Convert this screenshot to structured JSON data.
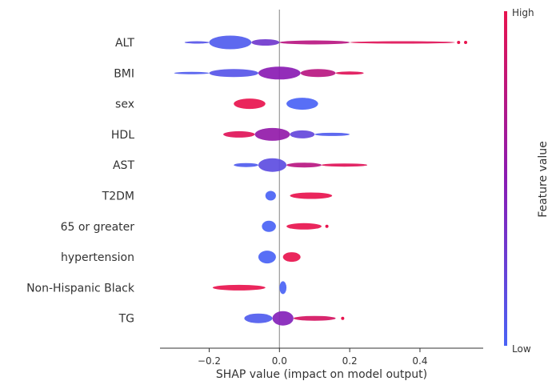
{
  "chart_data": {
    "type": "beeswarm",
    "xlabel": "SHAP value (impact on model output)",
    "x_ticks": [
      -0.2,
      0.0,
      0.2,
      0.4
    ],
    "x_tick_labels": [
      "−0.2",
      "0.0",
      "0.2",
      "0.4"
    ],
    "xlim": [
      -0.34,
      0.58
    ],
    "colorbar": {
      "label": "Feature value",
      "high_label": "High",
      "low_label": "Low",
      "low_color": "#4a63f5",
      "mid_color": "#8a1bb3",
      "high_color": "#e8134e"
    },
    "features": [
      {
        "name": "ALT",
        "segments": [
          {
            "x0": -0.27,
            "x1": -0.2,
            "h": 3,
            "c": 0.1
          },
          {
            "x0": -0.2,
            "x1": -0.08,
            "h": 17,
            "c": 0.05
          },
          {
            "x0": -0.08,
            "x1": 0.0,
            "h": 8,
            "c": 0.3
          },
          {
            "x0": 0.0,
            "x1": 0.2,
            "h": 5,
            "c": 0.75
          },
          {
            "x0": 0.2,
            "x1": 0.5,
            "h": 3,
            "c": 0.95
          }
        ],
        "dots": [
          {
            "x": 0.51,
            "c": 1.0
          },
          {
            "x": 0.53,
            "c": 1.0
          }
        ]
      },
      {
        "name": "BMI",
        "segments": [
          {
            "x0": -0.3,
            "x1": -0.2,
            "h": 3,
            "c": 0.05
          },
          {
            "x0": -0.2,
            "x1": -0.06,
            "h": 10,
            "c": 0.1
          },
          {
            "x0": -0.06,
            "x1": 0.06,
            "h": 16,
            "c": 0.5
          },
          {
            "x0": 0.06,
            "x1": 0.16,
            "h": 10,
            "c": 0.75
          },
          {
            "x0": 0.16,
            "x1": 0.24,
            "h": 4,
            "c": 0.95
          }
        ],
        "dots": []
      },
      {
        "name": "sex",
        "segments": [
          {
            "x0": -0.13,
            "x1": -0.04,
            "h": 13,
            "c": 1.0
          },
          {
            "x0": 0.02,
            "x1": 0.11,
            "h": 15,
            "c": 0.0
          }
        ],
        "dots": []
      },
      {
        "name": "HDL",
        "segments": [
          {
            "x0": -0.16,
            "x1": -0.07,
            "h": 8,
            "c": 0.95
          },
          {
            "x0": -0.07,
            "x1": 0.03,
            "h": 16,
            "c": 0.55
          },
          {
            "x0": 0.03,
            "x1": 0.1,
            "h": 10,
            "c": 0.2
          },
          {
            "x0": 0.1,
            "x1": 0.2,
            "h": 4,
            "c": 0.05
          }
        ],
        "dots": []
      },
      {
        "name": "AST",
        "segments": [
          {
            "x0": -0.13,
            "x1": -0.06,
            "h": 5,
            "c": 0.05
          },
          {
            "x0": -0.06,
            "x1": 0.02,
            "h": 17,
            "c": 0.15
          },
          {
            "x0": 0.02,
            "x1": 0.12,
            "h": 6,
            "c": 0.75
          },
          {
            "x0": 0.12,
            "x1": 0.25,
            "h": 4,
            "c": 0.95
          }
        ],
        "dots": []
      },
      {
        "name": "T2DM",
        "segments": [
          {
            "x0": -0.04,
            "x1": -0.01,
            "h": 12,
            "c": 0.0
          },
          {
            "x0": 0.03,
            "x1": 0.15,
            "h": 8,
            "c": 1.0
          }
        ],
        "dots": []
      },
      {
        "name": "65 or greater",
        "segments": [
          {
            "x0": -0.05,
            "x1": -0.01,
            "h": 14,
            "c": 0.0
          },
          {
            "x0": 0.02,
            "x1": 0.12,
            "h": 8,
            "c": 1.0
          }
        ],
        "dots": [
          {
            "x": 0.135,
            "c": 1.0
          }
        ]
      },
      {
        "name": "hypertension",
        "segments": [
          {
            "x0": -0.06,
            "x1": -0.01,
            "h": 16,
            "c": 0.0
          },
          {
            "x0": 0.01,
            "x1": 0.06,
            "h": 12,
            "c": 1.0
          }
        ],
        "dots": []
      },
      {
        "name": "Non-Hispanic Black",
        "segments": [
          {
            "x0": -0.19,
            "x1": -0.04,
            "h": 7,
            "c": 1.0
          },
          {
            "x0": 0.0,
            "x1": 0.02,
            "h": 16,
            "c": 0.0
          }
        ],
        "dots": []
      },
      {
        "name": "TG",
        "segments": [
          {
            "x0": -0.1,
            "x1": -0.02,
            "h": 12,
            "c": 0.05
          },
          {
            "x0": -0.02,
            "x1": 0.04,
            "h": 18,
            "c": 0.45
          },
          {
            "x0": 0.04,
            "x1": 0.16,
            "h": 6,
            "c": 0.9
          }
        ],
        "dots": [
          {
            "x": 0.18,
            "c": 1.0
          }
        ]
      }
    ]
  }
}
